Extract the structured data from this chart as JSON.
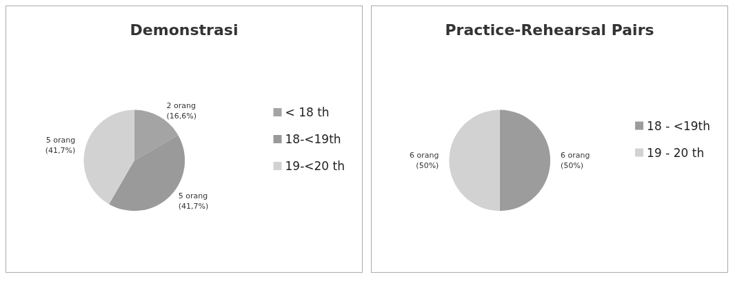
{
  "chart_data": [
    {
      "type": "pie",
      "title": "Demonstrasi",
      "categories": [
        "< 18 th",
        "18-<19th",
        "19-<20 th"
      ],
      "values": [
        2,
        5,
        5
      ],
      "colors": [
        "#a4a4a4",
        "#9a9a9a",
        "#d2d2d2"
      ],
      "value_labels": [
        "2 orang\n(16,6%)",
        "5 orang\n(41,7%)",
        "5 orang\n(41,7%)"
      ],
      "legend": "right"
    },
    {
      "type": "pie",
      "title": "Practice-Rehearsal Pairs",
      "categories": [
        "18 - <19th",
        "19 - 20 th"
      ],
      "values": [
        6,
        6
      ],
      "colors": [
        "#9c9c9c",
        "#d2d2d2"
      ],
      "value_labels": [
        "6 orang\n(50%)",
        "6 orang\n(50%)"
      ],
      "legend": "right"
    }
  ]
}
